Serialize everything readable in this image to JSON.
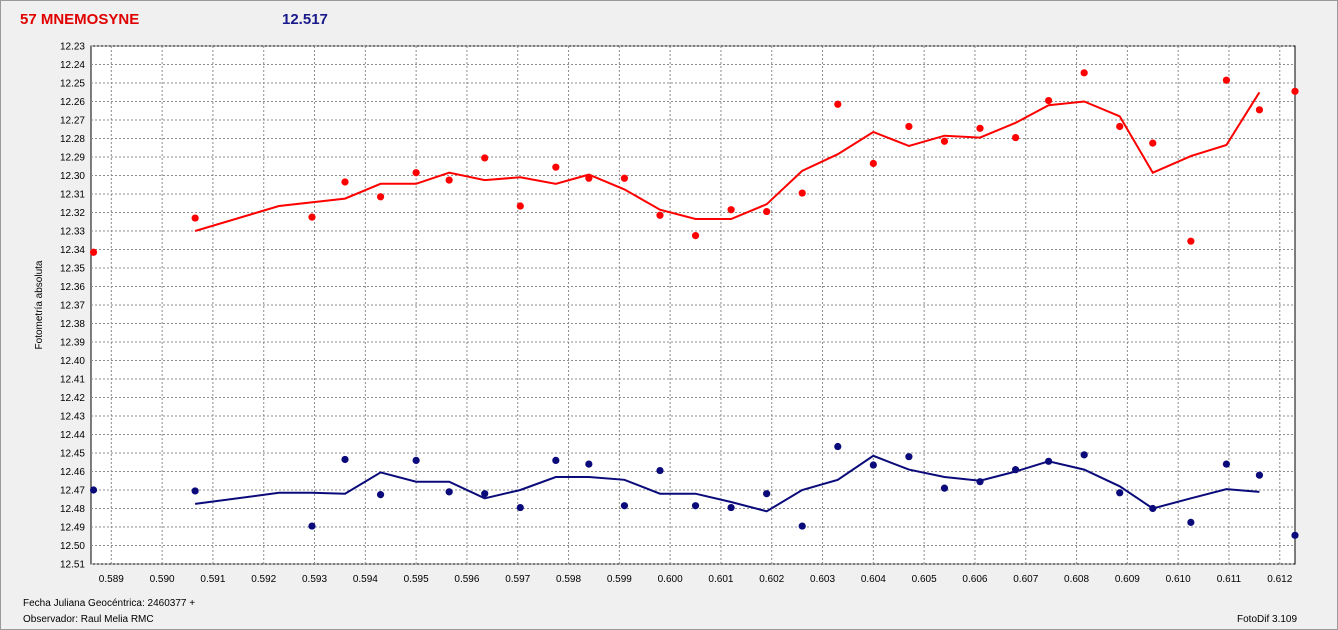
{
  "header": {
    "object_name": "57 MNEMOSYNE",
    "magnitude": "12.517",
    "object_color": "#e00000",
    "magnitude_color": "#1a1a8c"
  },
  "footer": {
    "date_label": "Fecha Juliana Geocéntrica: 2460377 +",
    "observer": "Observador: Raul Melia RMC",
    "software": "FotoDif 3.109"
  },
  "chart_data": {
    "type": "scatter",
    "title": "",
    "xlabel": "",
    "ylabel": "Fotometría absoluta",
    "xlim": [
      0.5886,
      0.6123
    ],
    "ylim": [
      12.23,
      12.51
    ],
    "y_inverted": true,
    "grid": true,
    "x_ticks": [
      "0.589",
      "0.590",
      "0.591",
      "0.592",
      "0.593",
      "0.594",
      "0.595",
      "0.596",
      "0.597",
      "0.598",
      "0.599",
      "0.600",
      "0.601",
      "0.602",
      "0.603",
      "0.604",
      "0.605",
      "0.606",
      "0.607",
      "0.608",
      "0.609",
      "0.610",
      "0.611",
      "0.612"
    ],
    "y_ticks": [
      "12.23",
      "12.24",
      "12.25",
      "12.26",
      "12.27",
      "12.28",
      "12.29",
      "12.30",
      "12.31",
      "12.32",
      "12.33",
      "12.34",
      "12.35",
      "12.36",
      "12.37",
      "12.38",
      "12.39",
      "12.40",
      "12.41",
      "12.42",
      "12.43",
      "12.44",
      "12.45",
      "12.46",
      "12.47",
      "12.48",
      "12.49",
      "12.50",
      "12.51"
    ],
    "series": [
      {
        "color": "#ff0000",
        "points": [
          [
            0.58865,
            12.3415
          ],
          [
            0.59065,
            12.323
          ],
          [
            0.59295,
            12.3225
          ],
          [
            0.5936,
            12.3035
          ],
          [
            0.5943,
            12.3115
          ],
          [
            0.595,
            12.2985
          ],
          [
            0.59565,
            12.3025
          ],
          [
            0.59635,
            12.2905
          ],
          [
            0.59705,
            12.3165
          ],
          [
            0.59775,
            12.2955
          ],
          [
            0.5984,
            12.3015
          ],
          [
            0.5991,
            12.3015
          ],
          [
            0.5998,
            12.3215
          ],
          [
            0.6005,
            12.3325
          ],
          [
            0.6012,
            12.3185
          ],
          [
            0.6019,
            12.3195
          ],
          [
            0.6026,
            12.3095
          ],
          [
            0.6033,
            12.2615
          ],
          [
            0.604,
            12.2935
          ],
          [
            0.6047,
            12.2735
          ],
          [
            0.6054,
            12.2815
          ],
          [
            0.6061,
            12.2745
          ],
          [
            0.6068,
            12.2795
          ],
          [
            0.60745,
            12.2595
          ],
          [
            0.60815,
            12.2445
          ],
          [
            0.60885,
            12.2735
          ],
          [
            0.6095,
            12.2825
          ],
          [
            0.61025,
            12.3355
          ],
          [
            0.61095,
            12.2485
          ],
          [
            0.6116,
            12.2645
          ],
          [
            0.6123,
            12.2545
          ]
        ],
        "line": [
          [
            0.59065,
            12.33
          ],
          [
            0.5923,
            12.3165
          ],
          [
            0.5936,
            12.3125
          ],
          [
            0.5943,
            12.3045
          ],
          [
            0.595,
            12.3045
          ],
          [
            0.59565,
            12.2985
          ],
          [
            0.59635,
            12.3025
          ],
          [
            0.59705,
            12.301
          ],
          [
            0.59775,
            12.3045
          ],
          [
            0.5984,
            12.2995
          ],
          [
            0.5991,
            12.3075
          ],
          [
            0.5998,
            12.3185
          ],
          [
            0.6005,
            12.3235
          ],
          [
            0.6012,
            12.3235
          ],
          [
            0.6019,
            12.3155
          ],
          [
            0.6026,
            12.2975
          ],
          [
            0.6033,
            12.2885
          ],
          [
            0.604,
            12.2765
          ],
          [
            0.6047,
            12.284
          ],
          [
            0.6054,
            12.2785
          ],
          [
            0.6061,
            12.2795
          ],
          [
            0.6068,
            12.2715
          ],
          [
            0.60745,
            12.262
          ],
          [
            0.60815,
            12.26
          ],
          [
            0.60885,
            12.268
          ],
          [
            0.6095,
            12.2985
          ],
          [
            0.61025,
            12.2895
          ],
          [
            0.61095,
            12.2835
          ],
          [
            0.6116,
            12.255
          ]
        ]
      },
      {
        "color": "#0a0a7a",
        "points": [
          [
            0.58865,
            12.47
          ],
          [
            0.59065,
            12.4705
          ],
          [
            0.59295,
            12.4895
          ],
          [
            0.5936,
            12.4535
          ],
          [
            0.5943,
            12.4725
          ],
          [
            0.595,
            12.454
          ],
          [
            0.59565,
            12.471
          ],
          [
            0.59635,
            12.472
          ],
          [
            0.59705,
            12.4795
          ],
          [
            0.59775,
            12.454
          ],
          [
            0.5984,
            12.456
          ],
          [
            0.5991,
            12.4785
          ],
          [
            0.5998,
            12.4595
          ],
          [
            0.6005,
            12.4785
          ],
          [
            0.6012,
            12.4795
          ],
          [
            0.6019,
            12.472
          ],
          [
            0.6026,
            12.4895
          ],
          [
            0.6033,
            12.4465
          ],
          [
            0.604,
            12.4565
          ],
          [
            0.6047,
            12.452
          ],
          [
            0.6054,
            12.469
          ],
          [
            0.6061,
            12.4655
          ],
          [
            0.6068,
            12.459
          ],
          [
            0.60745,
            12.4545
          ],
          [
            0.60815,
            12.451
          ],
          [
            0.60885,
            12.4715
          ],
          [
            0.6095,
            12.48
          ],
          [
            0.61025,
            12.4875
          ],
          [
            0.61095,
            12.456
          ],
          [
            0.6116,
            12.462
          ],
          [
            0.6123,
            12.4945
          ]
        ],
        "line": [
          [
            0.59065,
            12.4775
          ],
          [
            0.5923,
            12.4715
          ],
          [
            0.59295,
            12.4715
          ],
          [
            0.5936,
            12.472
          ],
          [
            0.5943,
            12.4605
          ],
          [
            0.595,
            12.4655
          ],
          [
            0.59565,
            12.4655
          ],
          [
            0.59635,
            12.4745
          ],
          [
            0.59705,
            12.47
          ],
          [
            0.59775,
            12.463
          ],
          [
            0.5984,
            12.463
          ],
          [
            0.5991,
            12.4645
          ],
          [
            0.5998,
            12.472
          ],
          [
            0.6005,
            12.472
          ],
          [
            0.6012,
            12.4765
          ],
          [
            0.6019,
            12.4815
          ],
          [
            0.6026,
            12.47
          ],
          [
            0.6033,
            12.4645
          ],
          [
            0.604,
            12.4515
          ],
          [
            0.6047,
            12.459
          ],
          [
            0.6054,
            12.463
          ],
          [
            0.6061,
            12.465
          ],
          [
            0.6068,
            12.46
          ],
          [
            0.60745,
            12.4545
          ],
          [
            0.60815,
            12.459
          ],
          [
            0.60885,
            12.468
          ],
          [
            0.6095,
            12.48
          ],
          [
            0.61025,
            12.4745
          ],
          [
            0.61095,
            12.4695
          ],
          [
            0.6116,
            12.471
          ]
        ]
      }
    ]
  }
}
